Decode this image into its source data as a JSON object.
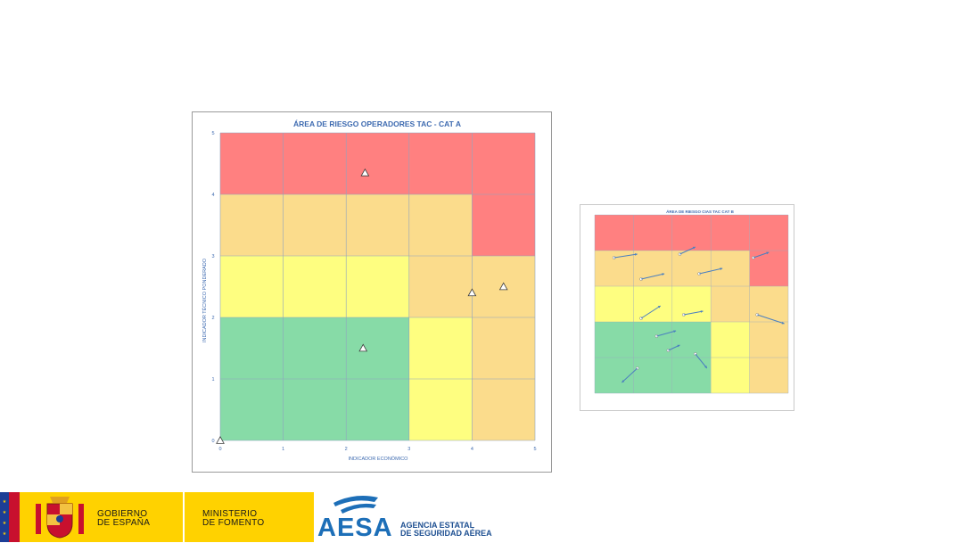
{
  "chart_data": [
    {
      "type": "scatter",
      "title": "ÁREA DE RIESGO OPERADORES TAC - CAT A",
      "xlabel": "INDICADOR ECONÓMICO",
      "ylabel": "INDICADOR TÉCNICO PONDERADO",
      "xlim": [
        0,
        5
      ],
      "ylim": [
        0,
        5
      ],
      "x_ticks": [
        "0",
        "1",
        "2",
        "3",
        "4",
        "5"
      ],
      "y_ticks": [
        "0",
        "1",
        "2",
        "3",
        "4",
        "5"
      ],
      "grid": true,
      "marker": "triangle",
      "zone_colors": {
        "red": "#ff8080",
        "orange": "#fbdc8c",
        "yellow": "#fefe80",
        "green": "#87dba7"
      },
      "zones": [
        {
          "x": [
            0,
            4
          ],
          "y": [
            4,
            5
          ],
          "color": "red"
        },
        {
          "x": [
            4,
            5
          ],
          "y": [
            3,
            5
          ],
          "color": "red"
        },
        {
          "x": [
            0,
            4
          ],
          "y": [
            3,
            4
          ],
          "color": "orange"
        },
        {
          "x": [
            0,
            3
          ],
          "y": [
            2,
            3
          ],
          "color": "yellow"
        },
        {
          "x": [
            3,
            5
          ],
          "y": [
            2,
            3
          ],
          "color": "orange"
        },
        {
          "x": [
            0,
            3
          ],
          "y": [
            0,
            2
          ],
          "color": "green"
        },
        {
          "x": [
            3,
            4
          ],
          "y": [
            0,
            2
          ],
          "color": "yellow"
        },
        {
          "x": [
            4,
            5
          ],
          "y": [
            0,
            2
          ],
          "color": "orange"
        }
      ],
      "points": [
        {
          "x": 2.3,
          "y": 4.35
        },
        {
          "x": 4.0,
          "y": 2.4
        },
        {
          "x": 4.5,
          "y": 2.5
        },
        {
          "x": 2.27,
          "y": 1.5
        },
        {
          "x": 0.0,
          "y": 0.0
        }
      ]
    },
    {
      "type": "scatter",
      "title": "ÁREA DE RIESGO CIAS TAC CAT B",
      "xlim": [
        0,
        5
      ],
      "ylim": [
        0,
        5
      ],
      "zones": [
        {
          "x": [
            0,
            4
          ],
          "y": [
            4,
            5
          ],
          "color": "red"
        },
        {
          "x": [
            4,
            5
          ],
          "y": [
            3,
            5
          ],
          "color": "red"
        },
        {
          "x": [
            0,
            4
          ],
          "y": [
            3,
            4
          ],
          "color": "orange"
        },
        {
          "x": [
            0,
            3
          ],
          "y": [
            2,
            3
          ],
          "color": "yellow"
        },
        {
          "x": [
            3,
            5
          ],
          "y": [
            2,
            3
          ],
          "color": "orange"
        },
        {
          "x": [
            0,
            3
          ],
          "y": [
            0,
            2
          ],
          "color": "green"
        },
        {
          "x": [
            3,
            4
          ],
          "y": [
            0,
            2
          ],
          "color": "yellow"
        },
        {
          "x": [
            4,
            5
          ],
          "y": [
            0,
            2
          ],
          "color": "orange"
        }
      ],
      "arrows": [
        {
          "from": [
            0.5,
            3.8
          ],
          "to": [
            1.1,
            3.9
          ]
        },
        {
          "from": [
            1.2,
            3.2
          ],
          "to": [
            1.8,
            3.35
          ]
        },
        {
          "from": [
            2.2,
            3.9
          ],
          "to": [
            2.6,
            4.1
          ]
        },
        {
          "from": [
            2.7,
            3.35
          ],
          "to": [
            3.3,
            3.5
          ]
        },
        {
          "from": [
            1.2,
            2.1
          ],
          "to": [
            1.7,
            2.45
          ]
        },
        {
          "from": [
            2.3,
            2.2
          ],
          "to": [
            2.8,
            2.3
          ]
        },
        {
          "from": [
            1.6,
            1.6
          ],
          "to": [
            2.1,
            1.75
          ]
        },
        {
          "from": [
            4.1,
            3.8
          ],
          "to": [
            4.5,
            3.95
          ]
        },
        {
          "from": [
            4.2,
            2.2
          ],
          "to": [
            4.9,
            1.95
          ]
        },
        {
          "from": [
            1.1,
            0.7
          ],
          "to": [
            0.7,
            0.3
          ]
        },
        {
          "from": [
            2.6,
            1.1
          ],
          "to": [
            2.9,
            0.7
          ]
        },
        {
          "from": [
            1.9,
            1.2
          ],
          "to": [
            2.2,
            1.35
          ]
        }
      ]
    }
  ],
  "footer": {
    "gov_line1": "GOBIERNO",
    "gov_line2": "DE ESPAÑA",
    "ministry_line1": "MINISTERIO",
    "ministry_line2": "DE FOMENTO",
    "aesa_logo": "AESA",
    "aesa_line1": "AGENCIA ESTATAL",
    "aesa_line2": "DE SEGURIDAD AÉREA",
    "colors": {
      "gov_yellow": "#ffd200",
      "aesa_blue": "#1d6fb8",
      "eu_blue": "#1d3e96",
      "spain_red": "#c8102e"
    },
    "icons": [
      "eu-flag-icon",
      "spain-coat-of-arms-icon",
      "aesa-wing-logo-icon"
    ]
  }
}
